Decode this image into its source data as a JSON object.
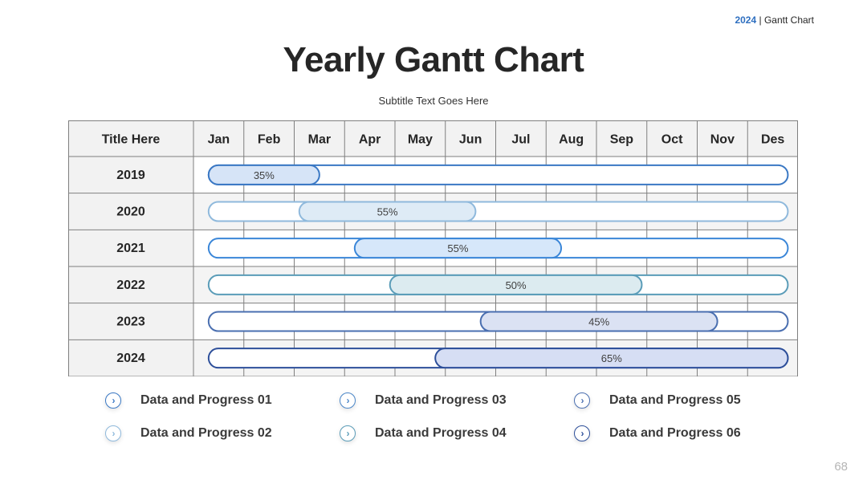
{
  "header": {
    "year": "2024",
    "separator": "|",
    "section": "Gantt Chart"
  },
  "title": "Yearly Gantt Chart",
  "subtitle": "Subtitle Text Goes Here",
  "page_number": "68",
  "colors": {
    "accent": "#2e6fc0",
    "grid": "#7f7f7f",
    "header_fill": "#f2f2f2"
  },
  "legend": [
    {
      "label": "Data and Progress 01",
      "icon": "chevron-right-circle-icon",
      "color": "#3a78c4"
    },
    {
      "label": "Data and Progress 02",
      "icon": "chevron-right-circle-icon",
      "color": "#8fb9dc"
    },
    {
      "label": "Data and Progress 03",
      "icon": "chevron-right-circle-icon",
      "color": "#4a86c8"
    },
    {
      "label": "Data and Progress 04",
      "icon": "chevron-right-circle-icon",
      "color": "#5a9cb8"
    },
    {
      "label": "Data and Progress 05",
      "icon": "chevron-right-circle-icon",
      "color": "#4a6fb0"
    },
    {
      "label": "Data and Progress 06",
      "icon": "chevron-right-circle-icon",
      "color": "#2d4f9a"
    }
  ],
  "chart_data": {
    "type": "table",
    "header_label": "Title Here",
    "months": [
      "Jan",
      "Feb",
      "Mar",
      "Apr",
      "May",
      "Jun",
      "Jul",
      "Aug",
      "Sep",
      "Oct",
      "Nov",
      "Des"
    ],
    "rows": [
      {
        "year": "2019",
        "start_month": 0.3,
        "end_month": 2.5,
        "progress": 35,
        "label": "35%",
        "stroke": "#3a78c4",
        "fill": "#d6e4f7"
      },
      {
        "year": "2020",
        "start_month": 2.1,
        "end_month": 5.6,
        "progress": 55,
        "label": "55%",
        "stroke": "#8fb9dc",
        "fill": "#deebf6"
      },
      {
        "year": "2021",
        "start_month": 3.2,
        "end_month": 7.3,
        "progress": 55,
        "label": "55%",
        "stroke": "#3a86d8",
        "fill": "#d6e7fa"
      },
      {
        "year": "2022",
        "start_month": 3.9,
        "end_month": 8.9,
        "progress": 50,
        "label": "50%",
        "stroke": "#5a9cb8",
        "fill": "#dcebf0"
      },
      {
        "year": "2023",
        "start_month": 5.7,
        "end_month": 10.4,
        "progress": 45,
        "label": "45%",
        "stroke": "#4a6fb0",
        "fill": "#dbe2f3"
      },
      {
        "year": "2024",
        "start_month": 4.8,
        "end_month": 11.8,
        "progress": 65,
        "label": "65%",
        "stroke": "#2d4f9a",
        "fill": "#d6def4"
      }
    ],
    "track": {
      "start_month": 0.3,
      "end_month": 11.8
    }
  }
}
